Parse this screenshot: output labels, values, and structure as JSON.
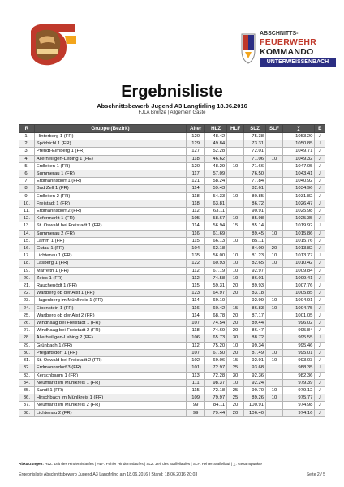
{
  "header": {
    "right_logo": {
      "line1": "ABSCHNITTS-",
      "line2": "FEUERWEHR",
      "line3": "KOMMANDO",
      "line4": "UNTERWEISSENBACH"
    },
    "title": "Ergebnisliste",
    "subtitle": "Abschnittsbewerb Jugend A3 Langfirling 18.06.2016",
    "subtitle2": "FJLA Bronze | Allgemein Gäste"
  },
  "table": {
    "columns": [
      "R",
      "Gruppe (Bezirk)",
      "Alter",
      "HLZ",
      "HLF",
      "SLZ",
      "SLF",
      "∑",
      "E"
    ],
    "rows": [
      [
        "1.",
        "Hinterberg 1 (FR)",
        "120",
        "48.42",
        "",
        "75.38",
        "",
        "1053.20",
        "J"
      ],
      [
        "2.",
        "Spörbichl 1 (FR)",
        "129",
        "49.84",
        "",
        "73.31",
        "",
        "1050.85",
        "J"
      ],
      [
        "3.",
        "Prendt-Elmberg 1 (FR)",
        "127",
        "52.28",
        "",
        "72.01",
        "",
        "1049.71",
        "J"
      ],
      [
        "4.",
        "Allerheiligen-Lebing 1 (PE)",
        "118",
        "46.62",
        "",
        "71.06",
        "10",
        "1049.32",
        "J"
      ],
      [
        "5.",
        "Erdleiten 1 (FR)",
        "120",
        "48.29",
        "10",
        "71.66",
        "",
        "1047.05",
        "J"
      ],
      [
        "6.",
        "Summerau 1 (FR)",
        "117",
        "57.09",
        "",
        "76.50",
        "",
        "1043.41",
        "J"
      ],
      [
        "7.",
        "Erdmannsdorf 1 (FR)",
        "121",
        "58.24",
        "",
        "77.84",
        "",
        "1040.92",
        "J"
      ],
      [
        "8.",
        "Bad Zell 1 (FR)",
        "114",
        "59.43",
        "",
        "82.61",
        "",
        "1034.96",
        "J"
      ],
      [
        "9.",
        "Erdleiten 2 (FR)",
        "118",
        "54.33",
        "10",
        "80.85",
        "",
        "1031.82",
        "J"
      ],
      [
        "10.",
        "Freistadt 1 (FR)",
        "118",
        "63.81",
        "",
        "86.72",
        "",
        "1026.47",
        "J"
      ],
      [
        "11.",
        "Erdmannsdorf 2 (FR)",
        "112",
        "63.11",
        "",
        "90.91",
        "",
        "1025.98",
        "J"
      ],
      [
        "12.",
        "Kefermarkt 1 (FR)",
        "105",
        "58.67",
        "10",
        "85.98",
        "",
        "1025.35",
        "J"
      ],
      [
        "13.",
        "St. Oswald bei Freistadt 1 (FR)",
        "114",
        "56.94",
        "15",
        "85.14",
        "",
        "1019.92",
        "J"
      ],
      [
        "14.",
        "Summerau 2 (FR)",
        "116",
        "61.69",
        "",
        "89.45",
        "10",
        "1015.86",
        "J"
      ],
      [
        "15.",
        "Lamm 1 (FR)",
        "115",
        "66.13",
        "10",
        "85.11",
        "",
        "1015.76",
        "J"
      ],
      [
        "16.",
        "Gutau 1 (FR)",
        "104",
        "62.18",
        "",
        "84.00",
        "20",
        "1013.82",
        "J"
      ],
      [
        "17.",
        "Lichtenau 1 (FR)",
        "135",
        "56.00",
        "10",
        "81.23",
        "10",
        "1013.77",
        "J"
      ],
      [
        "18.",
        "Lasberg 1 (FR)",
        "122",
        "60.93",
        "10",
        "82.65",
        "10",
        "1010.42",
        "J"
      ],
      [
        "19.",
        "Marreith 1 (FR)",
        "112",
        "67.19",
        "10",
        "92.97",
        "",
        "1009.84",
        "J"
      ],
      [
        "20.",
        "Zeiss 1 (FR)",
        "112",
        "74.58",
        "10",
        "86.01",
        "",
        "1009.41",
        "J"
      ],
      [
        "21.",
        "Rauchenödt 1 (FR)",
        "115",
        "59.31",
        "20",
        "89.93",
        "",
        "1007.76",
        "J"
      ],
      [
        "22.",
        "Wartberg ob der Aist 1 (FR)",
        "123",
        "64.97",
        "20",
        "83.18",
        "",
        "1005.85",
        "J"
      ],
      [
        "23.",
        "Hagenberg im Mühlkreis 1 (FR)",
        "114",
        "69.10",
        "",
        "92.99",
        "10",
        "1004.91",
        "J"
      ],
      [
        "24.",
        "Eibenstein 1 (FR)",
        "116",
        "60.42",
        "15",
        "86.83",
        "10",
        "1004.75",
        "J"
      ],
      [
        "25.",
        "Wartberg ob der Aist 2 (FR)",
        "114",
        "68.78",
        "20",
        "87.17",
        "",
        "1001.05",
        "J"
      ],
      [
        "26.",
        "Windhaag bei Freistadt 1 (FR)",
        "107",
        "74.54",
        "20",
        "89.44",
        "",
        "996.02",
        "J"
      ],
      [
        "27.",
        "Windhaag bei Freistadt 2 (FR)",
        "118",
        "74.69",
        "20",
        "86.47",
        "",
        "995.84",
        "J"
      ],
      [
        "28.",
        "Allerheiligen-Lebing 2 (PE)",
        "106",
        "65.73",
        "30",
        "88.72",
        "",
        "995.55",
        "J"
      ],
      [
        "29.",
        "Grünbach 1 (FR)",
        "112",
        "75.20",
        "10",
        "99.34",
        "",
        "995.46",
        "J"
      ],
      [
        "30.",
        "Pregartsdorf 1 (FR)",
        "107",
        "67.50",
        "20",
        "87.49",
        "10",
        "995.01",
        "J"
      ],
      [
        "31.",
        "St. Oswald bei Freistadt 2 (FR)",
        "102",
        "69.06",
        "15",
        "92.91",
        "10",
        "993.03",
        "J"
      ],
      [
        "32.",
        "Erdmannsdorf 3 (FR)",
        "101",
        "72.97",
        "25",
        "93.68",
        "",
        "988.35",
        "J"
      ],
      [
        "33.",
        "Kerschbaum 1 (FR)",
        "113",
        "72.28",
        "30",
        "92.36",
        "",
        "982.36",
        "J"
      ],
      [
        "34.",
        "Neumarkt im Mühlkreis 1 (FR)",
        "111",
        "98.37",
        "10",
        "92.24",
        "",
        "979.39",
        "J"
      ],
      [
        "35.",
        "Sandl 1 (FR)",
        "115",
        "72.18",
        "25",
        "90.70",
        "10",
        "979.12",
        "J"
      ],
      [
        "36.",
        "Hirschbach im Mühlkreis 1 (FR)",
        "109",
        "79.97",
        "25",
        "89.26",
        "10",
        "975.77",
        "J"
      ],
      [
        "37.",
        "Neumarkt im Mühlkreis 2 (FR)",
        "99",
        "84.11",
        "20",
        "100.91",
        "",
        "974.98",
        "J"
      ],
      [
        "38.",
        "Lichtenau 2 (FR)",
        "99",
        "79.44",
        "20",
        "106.40",
        "",
        "974.16",
        "J"
      ]
    ]
  },
  "footer": {
    "abbr_label": "Abkürzungen:",
    "abbr_text": "HLZ: Zeit des Hindernislaufes | HLF: Fehler Hindernislaufes | SLZ: Zeit des Staffellaufes | SLF: Fehler Staffellauf | ∑: Gesamtpunkte",
    "line": "Ergebnisliste Abschnittsbewerb Jugend A3 Langfirling am 18.06.2016 | Stand: 18.06.2016 20:03",
    "page": "Seite 2 / 5"
  },
  "colors": {
    "header_bg": "#555555",
    "row_alt": "#eeeeee",
    "logo_red": "#c0392b",
    "logo_blue": "#2b2e83",
    "helmet_brown": "#8a5a2b"
  },
  "icons": [
    "fire-helmet-logo-icon",
    "feuerwehr-emblem-icon"
  ]
}
